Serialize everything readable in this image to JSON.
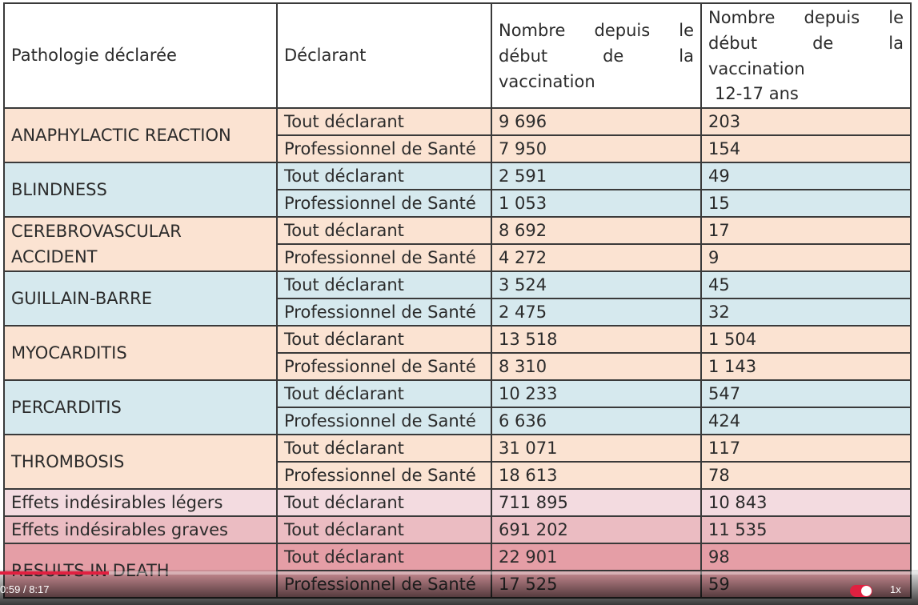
{
  "table": {
    "headers": [
      "Pathologie déclarée",
      "Déclarant",
      "Nombre depuis le début de la vaccination",
      "Nombre depuis le début de la vaccination",
      "12-17 ans"
    ],
    "rows": [
      {
        "pathology": "ANAPHYLACTIC REACTION",
        "entries": [
          {
            "declarant": "Tout déclarant",
            "total": "9 696",
            "teens": "203"
          },
          {
            "declarant": "Professionnel de Santé",
            "total": "7 950",
            "teens": "154"
          }
        ]
      },
      {
        "pathology": "BLINDNESS",
        "entries": [
          {
            "declarant": "Tout déclarant",
            "total": "2 591",
            "teens": "49"
          },
          {
            "declarant": "Professionnel de Santé",
            "total": "1 053",
            "teens": "15"
          }
        ]
      },
      {
        "pathology": "CEREBROVASCULAR ACCIDENT",
        "entries": [
          {
            "declarant": "Tout déclarant",
            "total": "8 692",
            "teens": "17"
          },
          {
            "declarant": "Professionnel de Santé",
            "total": "4 272",
            "teens": "9"
          }
        ]
      },
      {
        "pathology": "GUILLAIN-BARRE",
        "entries": [
          {
            "declarant": "Tout déclarant",
            "total": "3 524",
            "teens": "45"
          },
          {
            "declarant": "Professionnel de Santé",
            "total": "2 475",
            "teens": "32"
          }
        ]
      },
      {
        "pathology": "MYOCARDITIS",
        "entries": [
          {
            "declarant": "Tout déclarant",
            "total": "13 518",
            "teens": "1 504"
          },
          {
            "declarant": "Professionnel de Santé",
            "total": "8 310",
            "teens": "1 143"
          }
        ]
      },
      {
        "pathology": "PERCARDITIS",
        "entries": [
          {
            "declarant": "Tout déclarant",
            "total": "10 233",
            "teens": "547"
          },
          {
            "declarant": "Professionnel de Santé",
            "total": "6 636",
            "teens": "424"
          }
        ]
      },
      {
        "pathology": "THROMBOSIS",
        "entries": [
          {
            "declarant": "Tout déclarant",
            "total": "31 071",
            "teens": "117"
          },
          {
            "declarant": "Professionnel de Santé",
            "total": "18 613",
            "teens": "78"
          }
        ]
      },
      {
        "pathology": "Effets indésirables légers",
        "entries": [
          {
            "declarant": "Tout déclarant",
            "total": "711 895",
            "teens": "10 843"
          }
        ]
      },
      {
        "pathology": "Effets indésirables graves",
        "entries": [
          {
            "declarant": "Tout déclarant",
            "total": "691 202",
            "teens": "11 535"
          }
        ]
      },
      {
        "pathology": "RESULTS IN DEATH",
        "entries": [
          {
            "declarant": "Tout déclarant",
            "total": "22 901",
            "teens": "98"
          },
          {
            "declarant": "Professionnel de Santé",
            "total": "17 525",
            "teens": "59"
          }
        ]
      }
    ]
  },
  "player": {
    "current_time": "0:59",
    "separator": "/",
    "duration": "8:17",
    "speed": "1x",
    "progress_fraction": 0.1187,
    "accent_color": "#e02040"
  },
  "colors": {
    "peach": "#fbe3d2",
    "blue": "#d6e9ee",
    "pink_light": "#f3dbe0",
    "pink_mid": "#ebbcc2",
    "pink_dark": "#e59ea6"
  }
}
